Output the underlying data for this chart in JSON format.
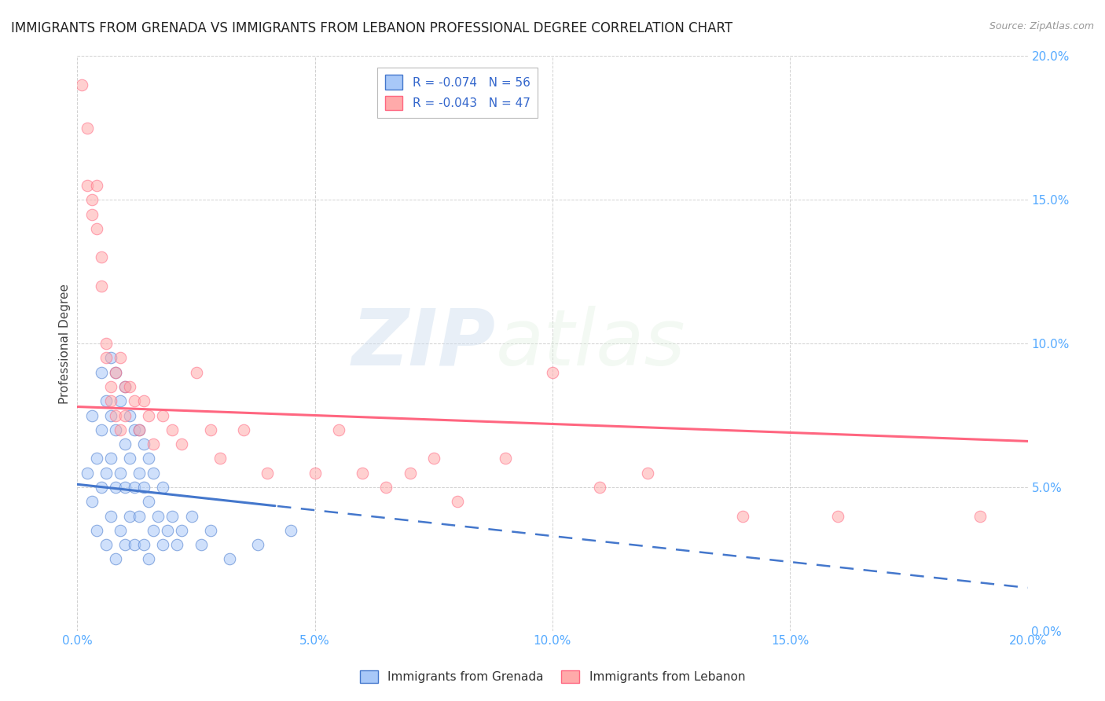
{
  "title": "IMMIGRANTS FROM GRENADA VS IMMIGRANTS FROM LEBANON PROFESSIONAL DEGREE CORRELATION CHART",
  "source": "Source: ZipAtlas.com",
  "ylabel": "Professional Degree",
  "legend_label1": "Immigrants from Grenada",
  "legend_label2": "Immigrants from Lebanon",
  "R1": -0.074,
  "N1": 56,
  "R2": -0.043,
  "N2": 47,
  "xlim": [
    0.0,
    0.2
  ],
  "ylim": [
    0.0,
    0.2
  ],
  "xticks": [
    0.0,
    0.05,
    0.1,
    0.15,
    0.2
  ],
  "yticks": [
    0.0,
    0.05,
    0.1,
    0.15,
    0.2
  ],
  "color_blue": "#a8c8f8",
  "color_pink": "#ffaaaa",
  "trendline_blue": "#4477cc",
  "trendline_pink": "#ff6680",
  "watermark_zip": "ZIP",
  "watermark_atlas": "atlas",
  "background_color": "#ffffff",
  "grenada_x": [
    0.002,
    0.003,
    0.003,
    0.004,
    0.004,
    0.005,
    0.005,
    0.005,
    0.006,
    0.006,
    0.006,
    0.007,
    0.007,
    0.007,
    0.007,
    0.008,
    0.008,
    0.008,
    0.008,
    0.009,
    0.009,
    0.009,
    0.01,
    0.01,
    0.01,
    0.01,
    0.011,
    0.011,
    0.011,
    0.012,
    0.012,
    0.012,
    0.013,
    0.013,
    0.013,
    0.014,
    0.014,
    0.014,
    0.015,
    0.015,
    0.015,
    0.016,
    0.016,
    0.017,
    0.018,
    0.018,
    0.019,
    0.02,
    0.021,
    0.022,
    0.024,
    0.026,
    0.028,
    0.032,
    0.038,
    0.045
  ],
  "grenada_y": [
    0.055,
    0.045,
    0.075,
    0.035,
    0.06,
    0.09,
    0.05,
    0.07,
    0.03,
    0.055,
    0.08,
    0.095,
    0.04,
    0.06,
    0.075,
    0.025,
    0.05,
    0.07,
    0.09,
    0.035,
    0.055,
    0.08,
    0.03,
    0.05,
    0.065,
    0.085,
    0.04,
    0.06,
    0.075,
    0.03,
    0.05,
    0.07,
    0.04,
    0.055,
    0.07,
    0.03,
    0.05,
    0.065,
    0.025,
    0.045,
    0.06,
    0.035,
    0.055,
    0.04,
    0.03,
    0.05,
    0.035,
    0.04,
    0.03,
    0.035,
    0.04,
    0.03,
    0.035,
    0.025,
    0.03,
    0.035
  ],
  "lebanon_x": [
    0.001,
    0.002,
    0.002,
    0.003,
    0.003,
    0.004,
    0.004,
    0.005,
    0.005,
    0.006,
    0.006,
    0.007,
    0.007,
    0.008,
    0.008,
    0.009,
    0.009,
    0.01,
    0.01,
    0.011,
    0.012,
    0.013,
    0.014,
    0.015,
    0.016,
    0.018,
    0.02,
    0.022,
    0.025,
    0.028,
    0.03,
    0.035,
    0.04,
    0.05,
    0.055,
    0.06,
    0.065,
    0.07,
    0.075,
    0.08,
    0.09,
    0.1,
    0.11,
    0.12,
    0.14,
    0.16,
    0.19
  ],
  "lebanon_y": [
    0.19,
    0.175,
    0.155,
    0.15,
    0.145,
    0.14,
    0.155,
    0.13,
    0.12,
    0.1,
    0.095,
    0.085,
    0.08,
    0.09,
    0.075,
    0.095,
    0.07,
    0.085,
    0.075,
    0.085,
    0.08,
    0.07,
    0.08,
    0.075,
    0.065,
    0.075,
    0.07,
    0.065,
    0.09,
    0.07,
    0.06,
    0.07,
    0.055,
    0.055,
    0.07,
    0.055,
    0.05,
    0.055,
    0.06,
    0.045,
    0.06,
    0.09,
    0.05,
    0.055,
    0.04,
    0.04,
    0.04
  ],
  "trend_blue_intercept": 0.051,
  "trend_blue_slope": -0.18,
  "trend_pink_intercept": 0.078,
  "trend_pink_slope": -0.06,
  "trend_split_x": 0.042
}
